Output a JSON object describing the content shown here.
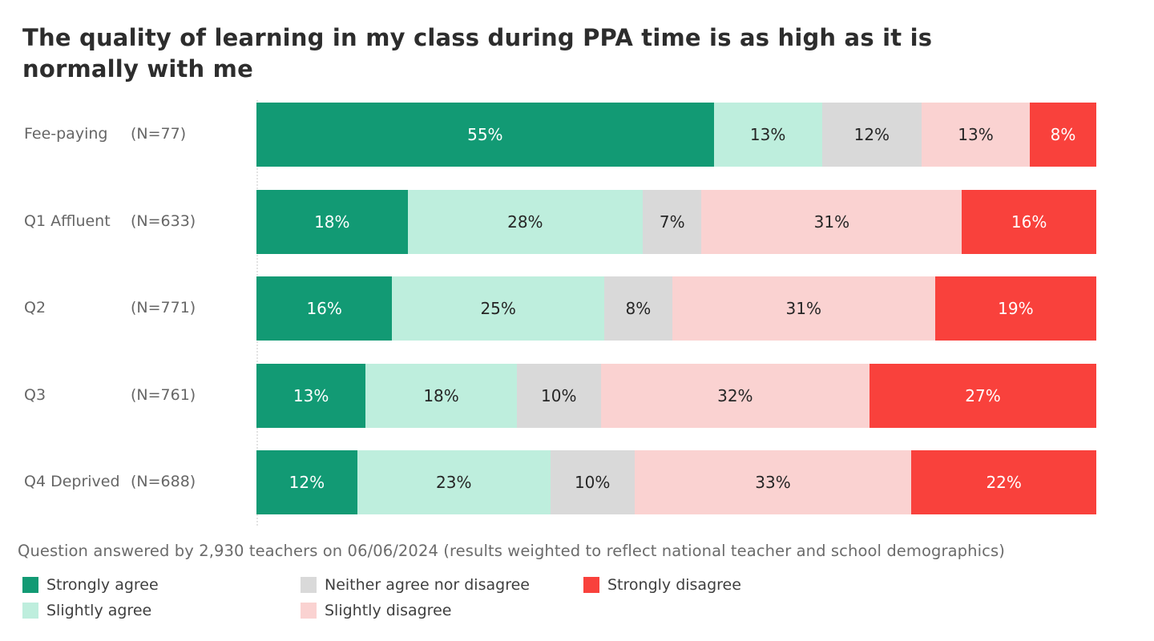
{
  "title": "The quality of learning in my class during PPA time is as high as it is normally with me",
  "footnote": "Question answered by 2,930 teachers on 06/06/2024 (results weighted to reflect national teacher and school demographics)",
  "chart_data": {
    "type": "bar",
    "orientation": "horizontal",
    "stacked": true,
    "unit": "%",
    "xlim": [
      0,
      100
    ],
    "grid": false,
    "legend_position": "bottom",
    "value_label_format": "{v}%",
    "categories": [
      "Fee-paying",
      "Q1 Affluent",
      "Q2",
      "Q3",
      "Q4 Deprived"
    ],
    "sample_sizes": [
      "(N=77)",
      "(N=633)",
      "(N=771)",
      "(N=761)",
      "(N=688)"
    ],
    "series": [
      {
        "name": "Strongly agree",
        "color": "#129a74",
        "text_color": "#ffffff",
        "dotted": false,
        "values": [
          55,
          18,
          16,
          13,
          12
        ]
      },
      {
        "name": "Slightly agree",
        "color": "#beeedd",
        "text_color": "#262626",
        "dotted": false,
        "values": [
          13,
          28,
          25,
          18,
          23
        ]
      },
      {
        "name": "Neither agree nor disagree",
        "color": "#d9d9d9",
        "text_color": "#262626",
        "dotted": false,
        "values": [
          12,
          7,
          8,
          10,
          10
        ]
      },
      {
        "name": "Slightly disagree",
        "color": "#fad2d1",
        "text_color": "#262626",
        "dotted": true,
        "values": [
          13,
          31,
          31,
          32,
          33
        ]
      },
      {
        "name": "Strongly disagree",
        "color": "#f9413c",
        "text_color": "#ffffff",
        "dotted": true,
        "values": [
          8,
          16,
          19,
          27,
          22
        ]
      }
    ]
  }
}
